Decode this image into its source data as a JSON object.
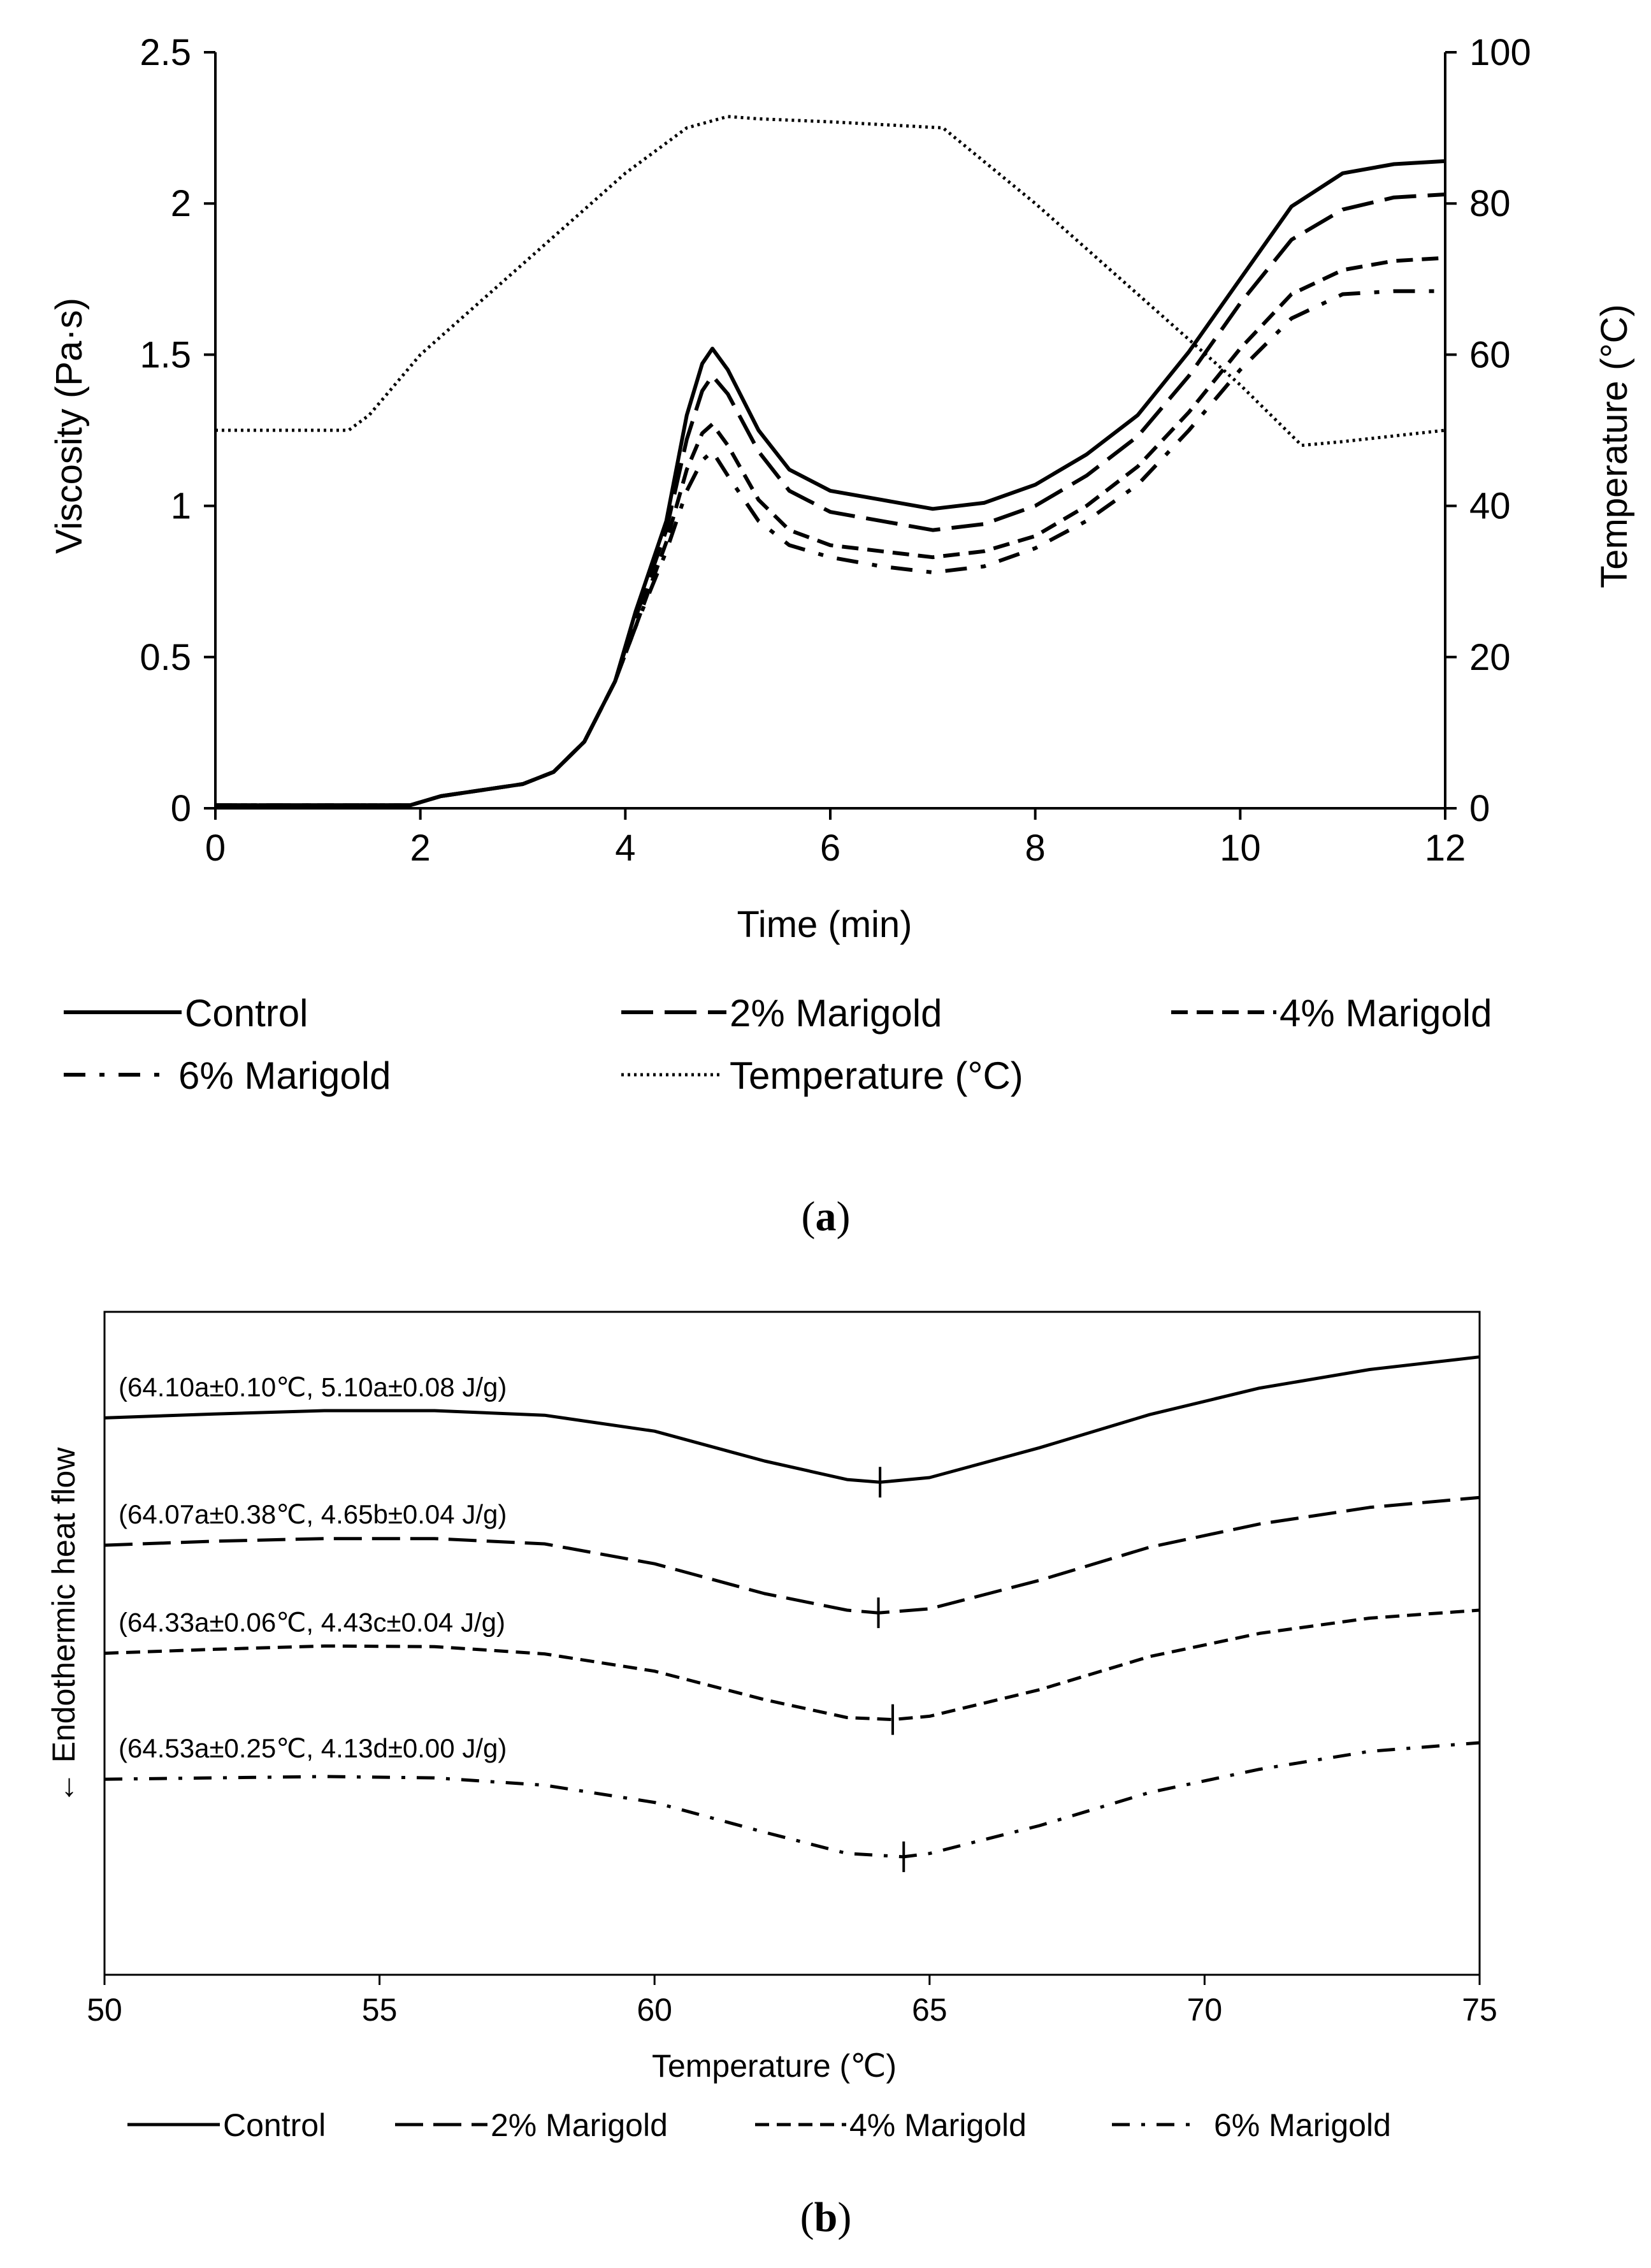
{
  "chart_data": [
    {
      "panel": "a",
      "type": "line",
      "caption": "a",
      "xlabel": "Time (min)",
      "ylabel": "Viscosity (Pa·s)",
      "y2label": "Temperature (°C)",
      "xlim": [
        0,
        12
      ],
      "ylim": [
        0,
        2.5
      ],
      "y2lim": [
        0,
        100
      ],
      "xticks": [
        "0",
        "2",
        "4",
        "6",
        "8",
        "10",
        "12"
      ],
      "yticks": [
        "0",
        "0.5",
        "1",
        "1.5",
        "2",
        "2.5"
      ],
      "y2ticks": [
        "0",
        "20",
        "40",
        "60",
        "80",
        "100"
      ],
      "series": [
        {
          "name": "Control",
          "style": "solid",
          "axis": "left",
          "points": [
            [
              0,
              0.01
            ],
            [
              1.9,
              0.01
            ],
            [
              2.2,
              0.04
            ],
            [
              2.6,
              0.06
            ],
            [
              3.0,
              0.08
            ],
            [
              3.3,
              0.12
            ],
            [
              3.6,
              0.22
            ],
            [
              3.9,
              0.42
            ],
            [
              4.1,
              0.65
            ],
            [
              4.4,
              0.95
            ],
            [
              4.6,
              1.3
            ],
            [
              4.75,
              1.47
            ],
            [
              4.85,
              1.52
            ],
            [
              5.0,
              1.45
            ],
            [
              5.3,
              1.25
            ],
            [
              5.6,
              1.12
            ],
            [
              6.0,
              1.05
            ],
            [
              6.5,
              1.02
            ],
            [
              7.0,
              0.99
            ],
            [
              7.5,
              1.01
            ],
            [
              8.0,
              1.07
            ],
            [
              8.5,
              1.17
            ],
            [
              9.0,
              1.3
            ],
            [
              9.5,
              1.51
            ],
            [
              10.0,
              1.75
            ],
            [
              10.5,
              1.99
            ],
            [
              11.0,
              2.1
            ],
            [
              11.5,
              2.13
            ],
            [
              12.0,
              2.14
            ]
          ]
        },
        {
          "name": "2% Marigold",
          "style": "longdash",
          "axis": "left",
          "points": [
            [
              0,
              0.01
            ],
            [
              1.9,
              0.01
            ],
            [
              2.2,
              0.04
            ],
            [
              2.6,
              0.06
            ],
            [
              3.0,
              0.08
            ],
            [
              3.3,
              0.12
            ],
            [
              3.6,
              0.22
            ],
            [
              3.9,
              0.42
            ],
            [
              4.1,
              0.63
            ],
            [
              4.4,
              0.92
            ],
            [
              4.6,
              1.22
            ],
            [
              4.75,
              1.38
            ],
            [
              4.85,
              1.43
            ],
            [
              5.0,
              1.37
            ],
            [
              5.3,
              1.18
            ],
            [
              5.6,
              1.05
            ],
            [
              6.0,
              0.98
            ],
            [
              6.5,
              0.95
            ],
            [
              7.0,
              0.92
            ],
            [
              7.5,
              0.94
            ],
            [
              8.0,
              1.0
            ],
            [
              8.5,
              1.1
            ],
            [
              9.0,
              1.23
            ],
            [
              9.5,
              1.43
            ],
            [
              10.0,
              1.67
            ],
            [
              10.5,
              1.88
            ],
            [
              11.0,
              1.98
            ],
            [
              11.5,
              2.02
            ],
            [
              12.0,
              2.03
            ]
          ]
        },
        {
          "name": "4% Marigold",
          "style": "shortdash",
          "axis": "left",
          "points": [
            [
              0,
              0.01
            ],
            [
              1.9,
              0.01
            ],
            [
              2.2,
              0.04
            ],
            [
              2.6,
              0.06
            ],
            [
              3.0,
              0.08
            ],
            [
              3.3,
              0.12
            ],
            [
              3.6,
              0.22
            ],
            [
              3.9,
              0.42
            ],
            [
              4.1,
              0.6
            ],
            [
              4.4,
              0.88
            ],
            [
              4.6,
              1.12
            ],
            [
              4.75,
              1.24
            ],
            [
              4.85,
              1.27
            ],
            [
              5.0,
              1.2
            ],
            [
              5.3,
              1.02
            ],
            [
              5.6,
              0.92
            ],
            [
              6.0,
              0.87
            ],
            [
              6.5,
              0.85
            ],
            [
              7.0,
              0.83
            ],
            [
              7.5,
              0.85
            ],
            [
              8.0,
              0.9
            ],
            [
              8.5,
              1.0
            ],
            [
              9.0,
              1.13
            ],
            [
              9.5,
              1.31
            ],
            [
              10.0,
              1.52
            ],
            [
              10.5,
              1.7
            ],
            [
              11.0,
              1.78
            ],
            [
              11.5,
              1.81
            ],
            [
              12.0,
              1.82
            ]
          ]
        },
        {
          "name": "6% Marigold",
          "style": "dashdot",
          "axis": "left",
          "points": [
            [
              0,
              0.01
            ],
            [
              1.9,
              0.01
            ],
            [
              2.2,
              0.04
            ],
            [
              2.6,
              0.06
            ],
            [
              3.0,
              0.08
            ],
            [
              3.3,
              0.12
            ],
            [
              3.6,
              0.22
            ],
            [
              3.9,
              0.42
            ],
            [
              4.1,
              0.6
            ],
            [
              4.4,
              0.85
            ],
            [
              4.6,
              1.05
            ],
            [
              4.75,
              1.15
            ],
            [
              4.85,
              1.18
            ],
            [
              5.0,
              1.1
            ],
            [
              5.3,
              0.95
            ],
            [
              5.6,
              0.87
            ],
            [
              6.0,
              0.83
            ],
            [
              6.5,
              0.8
            ],
            [
              7.0,
              0.78
            ],
            [
              7.5,
              0.8
            ],
            [
              8.0,
              0.86
            ],
            [
              8.5,
              0.95
            ],
            [
              9.0,
              1.07
            ],
            [
              9.5,
              1.25
            ],
            [
              10.0,
              1.45
            ],
            [
              10.5,
              1.62
            ],
            [
              11.0,
              1.7
            ],
            [
              11.5,
              1.71
            ],
            [
              12.0,
              1.71
            ]
          ]
        },
        {
          "name": "Temperature (°C)",
          "style": "dotted",
          "axis": "right",
          "points": [
            [
              0,
              50
            ],
            [
              1.3,
              50
            ],
            [
              1.5,
              52
            ],
            [
              2.0,
              60
            ],
            [
              3.0,
              72
            ],
            [
              4.0,
              84
            ],
            [
              4.6,
              90
            ],
            [
              5.0,
              91.5
            ],
            [
              5.3,
              91.2
            ],
            [
              6.0,
              90.8
            ],
            [
              7.1,
              90
            ],
            [
              8.0,
              80
            ],
            [
              9.0,
              68
            ],
            [
              10.0,
              56
            ],
            [
              10.6,
              48
            ],
            [
              11.0,
              48.5
            ],
            [
              12.0,
              50
            ]
          ]
        }
      ],
      "legend": [
        "Control",
        "2% Marigold",
        "4% Marigold",
        "6% Marigold",
        "Temperature (°C)"
      ]
    },
    {
      "panel": "b",
      "type": "line",
      "caption": "b",
      "xlabel": "Temperature (℃)",
      "ylabel": "← Endothermic  heat flow",
      "xlim": [
        50,
        75
      ],
      "ylim": [
        0,
        100
      ],
      "xticks": [
        "50",
        "55",
        "60",
        "65",
        "70",
        "75"
      ],
      "series": [
        {
          "name": "Control",
          "style": "solid",
          "peak_x": 64.1,
          "annotation": "(64.10a±0.10℃, 5.10a±0.08 J/g)",
          "points": [
            [
              50,
              84
            ],
            [
              52,
              84.6
            ],
            [
              54,
              85.1
            ],
            [
              56,
              85.1
            ],
            [
              58,
              84.4
            ],
            [
              60,
              82
            ],
            [
              62,
              77.5
            ],
            [
              63.5,
              74.7
            ],
            [
              64.1,
              74.3
            ],
            [
              65,
              75
            ],
            [
              67,
              79.5
            ],
            [
              69,
              84.5
            ],
            [
              71,
              88.5
            ],
            [
              73,
              91.3
            ],
            [
              75,
              93.2
            ]
          ]
        },
        {
          "name": "2% Marigold",
          "style": "longdash",
          "peak_x": 64.07,
          "annotation": "(64.07a±0.38℃, 4.65b±0.04 J/g)",
          "points": [
            [
              50,
              64.8
            ],
            [
              52,
              65.4
            ],
            [
              54,
              65.8
            ],
            [
              56,
              65.8
            ],
            [
              58,
              65
            ],
            [
              60,
              62
            ],
            [
              62,
              57.5
            ],
            [
              63.5,
              55
            ],
            [
              64.07,
              54.6
            ],
            [
              65,
              55.2
            ],
            [
              67,
              59.5
            ],
            [
              69,
              64.5
            ],
            [
              71,
              68
            ],
            [
              73,
              70.5
            ],
            [
              75,
              72
            ]
          ]
        },
        {
          "name": "4% Marigold",
          "style": "shortdash",
          "peak_x": 64.33,
          "annotation": "(64.33a±0.06℃, 4.43c±0.04 J/g)",
          "points": [
            [
              50,
              48.5
            ],
            [
              52,
              49.1
            ],
            [
              54,
              49.6
            ],
            [
              56,
              49.5
            ],
            [
              58,
              48.4
            ],
            [
              60,
              45.8
            ],
            [
              62,
              41.5
            ],
            [
              63.5,
              38.8
            ],
            [
              64.33,
              38.5
            ],
            [
              65,
              39
            ],
            [
              67,
              43
            ],
            [
              69,
              48
            ],
            [
              71,
              51.5
            ],
            [
              73,
              53.8
            ],
            [
              75,
              55
            ]
          ]
        },
        {
          "name": "6% Marigold",
          "style": "dashdot",
          "peak_x": 64.53,
          "annotation": "(64.53a±0.25℃, 4.13d±0.00 J/g)",
          "points": [
            [
              50,
              29.5
            ],
            [
              52,
              29.7
            ],
            [
              54,
              29.9
            ],
            [
              56,
              29.7
            ],
            [
              58,
              28.6
            ],
            [
              60,
              26
            ],
            [
              62,
              21.5
            ],
            [
              63.5,
              18.3
            ],
            [
              64.53,
              17.8
            ],
            [
              65,
              18.3
            ],
            [
              67,
              22.5
            ],
            [
              69,
              27.5
            ],
            [
              71,
              31
            ],
            [
              73,
              33.7
            ],
            [
              75,
              35
            ]
          ]
        }
      ],
      "legend": [
        "Control",
        "2% Marigold",
        "4% Marigold",
        "6% Marigold"
      ]
    }
  ],
  "colors": {
    "line": "#000000",
    "background": "#ffffff"
  }
}
